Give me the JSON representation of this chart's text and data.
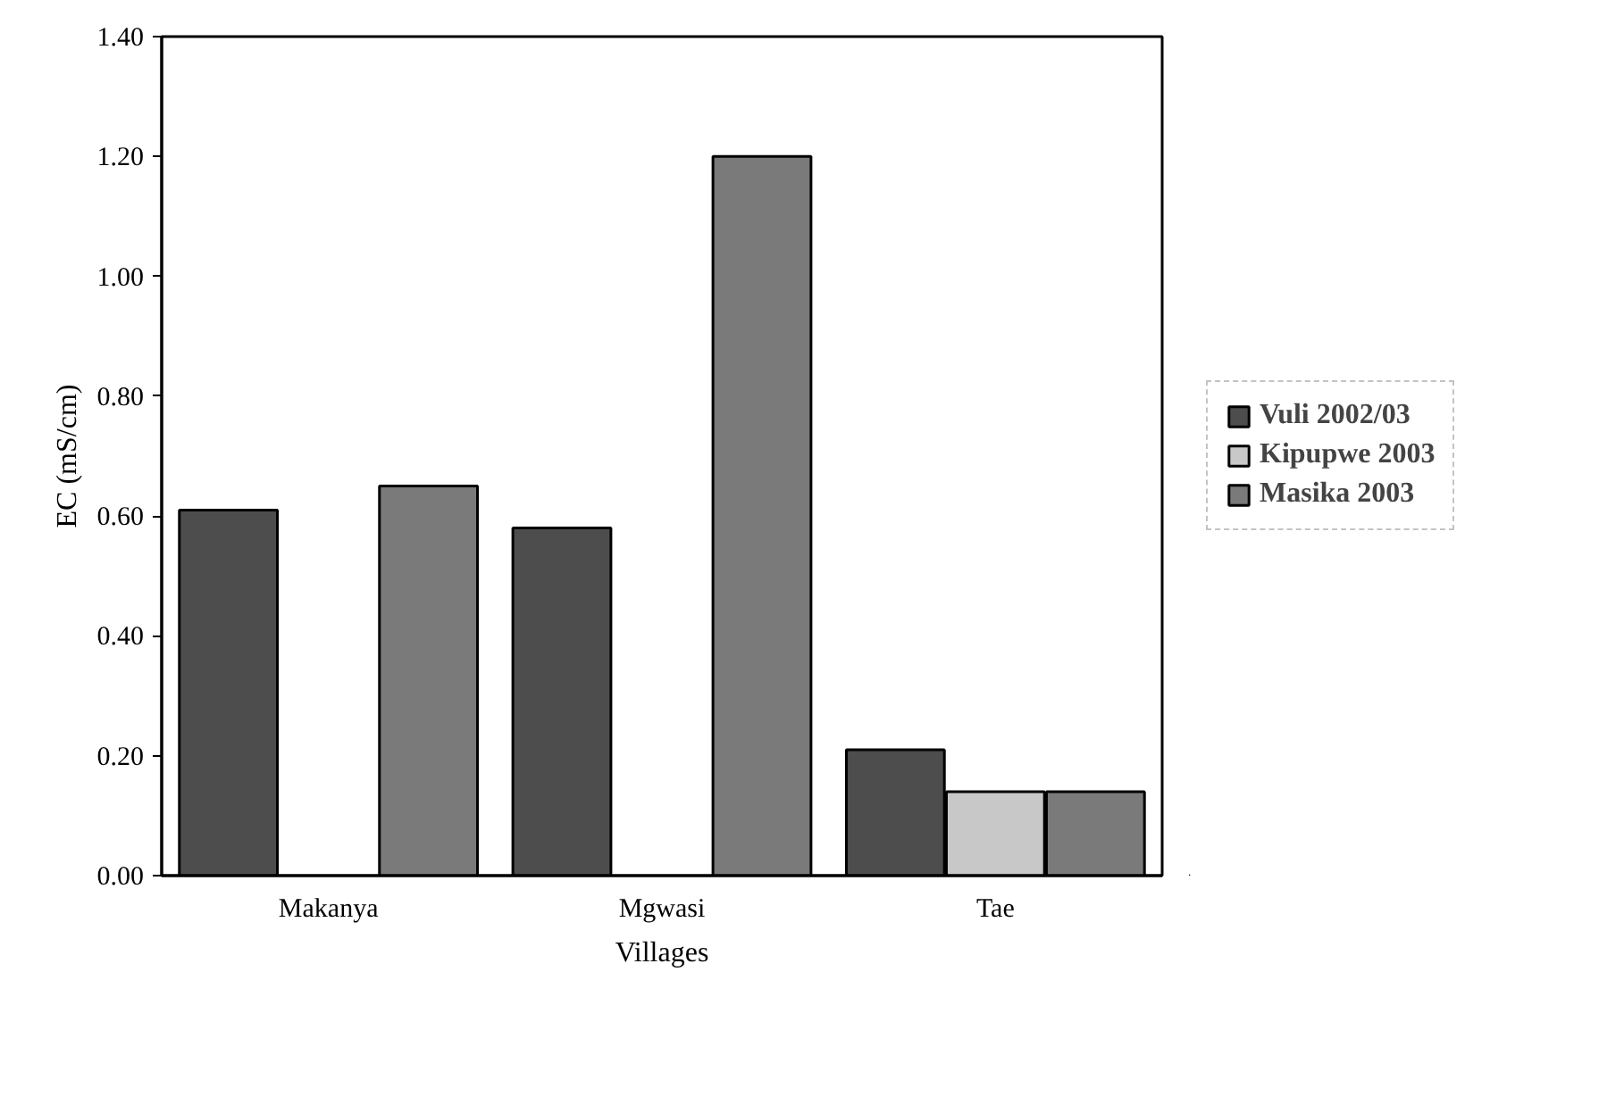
{
  "chart_data": {
    "type": "bar",
    "xlabel": "Villages",
    "ylabel": "EC (mS/cm)",
    "categories": [
      "Makanya",
      "Mgwasi",
      "Tae"
    ],
    "series": [
      {
        "name": "Vuli 2002/03",
        "color": "#4d4d4d",
        "values": [
          0.61,
          0.58,
          0.21
        ]
      },
      {
        "name": "Kipupwe 2003",
        "color": "#c8c8c8",
        "values": [
          null,
          null,
          0.14
        ]
      },
      {
        "name": "Masika 2003",
        "color": "#7a7a7a",
        "values": [
          0.65,
          1.2,
          0.14
        ]
      }
    ],
    "ylim": [
      0,
      1.4
    ],
    "yticks": [
      {
        "value": 0,
        "label": "0.00"
      },
      {
        "value": 0.2,
        "label": "0.20"
      },
      {
        "value": 0.4,
        "label": "0.40"
      },
      {
        "value": 0.6,
        "label": "0.60"
      },
      {
        "value": 0.8,
        "label": "0.80"
      },
      {
        "value": 1.0,
        "label": "1.00"
      },
      {
        "value": 1.2,
        "label": "1.20"
      },
      {
        "value": 1.4,
        "label": "1.40"
      }
    ],
    "grid": false,
    "legend": "right"
  }
}
